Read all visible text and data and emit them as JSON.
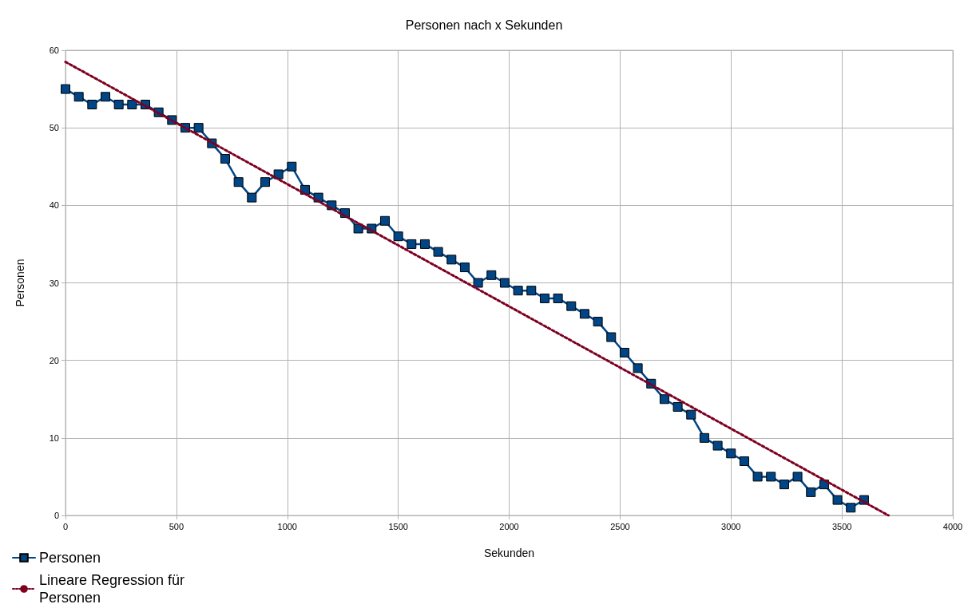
{
  "chart_data": {
    "type": "line",
    "title": "Personen nach x Sekunden",
    "xlabel": "Sekunden",
    "ylabel": "Personen",
    "x": [
      0,
      60,
      120,
      180,
      240,
      300,
      360,
      420,
      480,
      540,
      600,
      660,
      720,
      780,
      840,
      900,
      960,
      1020,
      1080,
      1140,
      1200,
      1260,
      1320,
      1380,
      1440,
      1500,
      1560,
      1620,
      1680,
      1740,
      1800,
      1860,
      1920,
      1980,
      2040,
      2100,
      2160,
      2220,
      2280,
      2340,
      2400,
      2460,
      2520,
      2580,
      2640,
      2700,
      2760,
      2820,
      2880,
      2940,
      3000,
      3060,
      3120,
      3180,
      3240,
      3300,
      3360,
      3420,
      3480,
      3540,
      3600
    ],
    "series": [
      {
        "name": "Personen",
        "color": "#004586",
        "marker": "square",
        "line_style": "solid",
        "values": [
          55,
          54,
          53,
          54,
          53,
          53,
          53,
          52,
          51,
          50,
          50,
          48,
          46,
          43,
          41,
          43,
          44,
          45,
          42,
          41,
          40,
          39,
          37,
          37,
          38,
          36,
          35,
          35,
          34,
          33,
          32,
          30,
          31,
          30,
          29,
          29,
          28,
          28,
          27,
          26,
          25,
          23,
          21,
          19,
          17,
          15,
          14,
          13,
          10,
          9,
          8,
          7,
          5,
          5,
          4,
          5,
          3,
          4,
          2,
          1,
          2
        ]
      },
      {
        "name": "Lineare Regression für Personen",
        "color": "#7e0021",
        "marker": "none",
        "line_style": "dotted",
        "x": [
          0,
          3710
        ],
        "values": [
          58.5,
          0
        ]
      }
    ],
    "xlim": [
      0,
      4000
    ],
    "xticks": [
      0,
      500,
      1000,
      1500,
      2000,
      2500,
      3000,
      3500,
      4000
    ],
    "ylim": [
      0,
      60
    ],
    "yticks": [
      0,
      10,
      20,
      30,
      40,
      50,
      60
    ],
    "grid": true,
    "legend": "bottom left"
  }
}
